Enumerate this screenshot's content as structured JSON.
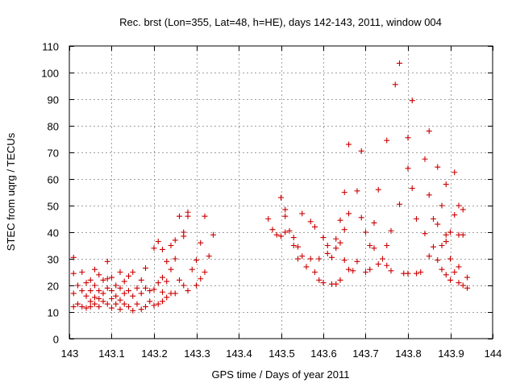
{
  "chart_data": {
    "type": "scatter",
    "title": "Rec. brst (Lon=355, Lat=48, h=HE), days 142-143, 2011, window 004",
    "xlabel": "GPS time / Days of year 2011",
    "ylabel": "STEC from uqrg / TECUs",
    "xlim": [
      143,
      144
    ],
    "ylim": [
      0,
      110
    ],
    "x_ticks": [
      143,
      143.1,
      143.2,
      143.3,
      143.4,
      143.5,
      143.6,
      143.7,
      143.8,
      143.9,
      144
    ],
    "x_tick_labels": [
      "143",
      "143.1",
      "143.2",
      "143.3",
      "143.4",
      "143.5",
      "143.6",
      "143.7",
      "143.8",
      "143.9",
      "144"
    ],
    "y_ticks": [
      0,
      10,
      20,
      30,
      40,
      50,
      60,
      70,
      80,
      90,
      100,
      110
    ],
    "y_tick_labels": [
      "0",
      "10",
      "20",
      "30",
      "40",
      "50",
      "60",
      "70",
      "80",
      "90",
      "100",
      "110"
    ],
    "grid": true,
    "marker": "+",
    "color": "#cc0000",
    "points": [
      [
        143.01,
        30.5
      ],
      [
        143.01,
        24.5
      ],
      [
        143.01,
        17
      ],
      [
        143.01,
        12
      ],
      [
        143.02,
        20
      ],
      [
        143.02,
        13
      ],
      [
        143.03,
        25
      ],
      [
        143.03,
        18
      ],
      [
        143.03,
        12
      ],
      [
        143.04,
        21
      ],
      [
        143.04,
        16
      ],
      [
        143.04,
        11.5
      ],
      [
        143.05,
        22
      ],
      [
        143.05,
        18
      ],
      [
        143.05,
        14
      ],
      [
        143.05,
        12
      ],
      [
        143.06,
        26
      ],
      [
        143.06,
        20
      ],
      [
        143.06,
        15.5
      ],
      [
        143.06,
        13
      ],
      [
        143.07,
        24
      ],
      [
        143.07,
        18
      ],
      [
        143.07,
        15
      ],
      [
        143.07,
        12
      ],
      [
        143.08,
        22
      ],
      [
        143.08,
        17
      ],
      [
        143.08,
        14
      ],
      [
        143.09,
        29
      ],
      [
        143.09,
        22.5
      ],
      [
        143.09,
        19
      ],
      [
        143.09,
        13
      ],
      [
        143.1,
        23
      ],
      [
        143.1,
        18
      ],
      [
        143.1,
        15
      ],
      [
        143.1,
        11.5
      ],
      [
        143.11,
        20
      ],
      [
        143.11,
        16
      ],
      [
        143.11,
        13
      ],
      [
        143.12,
        25
      ],
      [
        143.12,
        19
      ],
      [
        143.12,
        14.5
      ],
      [
        143.12,
        11
      ],
      [
        143.13,
        21.5
      ],
      [
        143.13,
        17
      ],
      [
        143.13,
        13
      ],
      [
        143.14,
        23.5
      ],
      [
        143.14,
        18
      ],
      [
        143.14,
        12
      ],
      [
        143.15,
        25
      ],
      [
        143.15,
        16
      ],
      [
        143.15,
        10.5
      ],
      [
        143.16,
        19
      ],
      [
        143.16,
        13
      ],
      [
        143.17,
        22
      ],
      [
        143.17,
        17
      ],
      [
        143.17,
        11
      ],
      [
        143.18,
        26.5
      ],
      [
        143.18,
        19
      ],
      [
        143.18,
        12
      ],
      [
        143.19,
        18
      ],
      [
        143.19,
        14
      ],
      [
        143.2,
        34
      ],
      [
        143.2,
        18.5
      ],
      [
        143.2,
        12.5
      ],
      [
        143.21,
        36.5
      ],
      [
        143.21,
        21
      ],
      [
        143.21,
        13
      ],
      [
        143.22,
        33.5
      ],
      [
        143.22,
        23
      ],
      [
        143.22,
        17.5
      ],
      [
        143.22,
        14
      ],
      [
        143.23,
        29
      ],
      [
        143.23,
        21.5
      ],
      [
        143.23,
        15.5
      ],
      [
        143.24,
        35
      ],
      [
        143.24,
        26
      ],
      [
        143.24,
        17
      ],
      [
        143.25,
        37
      ],
      [
        143.25,
        30
      ],
      [
        143.25,
        17
      ],
      [
        143.26,
        46
      ],
      [
        143.26,
        22
      ],
      [
        143.27,
        40
      ],
      [
        143.27,
        38.5
      ],
      [
        143.27,
        20
      ],
      [
        143.28,
        47.5
      ],
      [
        143.28,
        46
      ],
      [
        143.28,
        18
      ],
      [
        143.29,
        26
      ],
      [
        143.3,
        29.5
      ],
      [
        143.3,
        20
      ],
      [
        143.31,
        36
      ],
      [
        143.31,
        22.5
      ],
      [
        143.32,
        46
      ],
      [
        143.32,
        25
      ],
      [
        143.33,
        31
      ],
      [
        143.34,
        39
      ],
      [
        143.47,
        45
      ],
      [
        143.48,
        41
      ],
      [
        143.49,
        39
      ],
      [
        143.5,
        53
      ],
      [
        143.5,
        38.5
      ],
      [
        143.51,
        48.5
      ],
      [
        143.51,
        46
      ],
      [
        143.51,
        40
      ],
      [
        143.52,
        40.5
      ],
      [
        143.53,
        35
      ],
      [
        143.53,
        38
      ],
      [
        143.54,
        34.5
      ],
      [
        143.54,
        30
      ],
      [
        143.55,
        47
      ],
      [
        143.55,
        31
      ],
      [
        143.56,
        27
      ],
      [
        143.57,
        44
      ],
      [
        143.57,
        30
      ],
      [
        143.58,
        25
      ],
      [
        143.58,
        42
      ],
      [
        143.59,
        30
      ],
      [
        143.59,
        22
      ],
      [
        143.6,
        21
      ],
      [
        143.6,
        38
      ],
      [
        143.61,
        35
      ],
      [
        143.61,
        32
      ],
      [
        143.62,
        30.5
      ],
      [
        143.62,
        20.5
      ],
      [
        143.63,
        37.5
      ],
      [
        143.63,
        34
      ],
      [
        143.63,
        20.5
      ],
      [
        143.64,
        36
      ],
      [
        143.64,
        44.5
      ],
      [
        143.64,
        22
      ],
      [
        143.65,
        41
      ],
      [
        143.65,
        55
      ],
      [
        143.65,
        29.5
      ],
      [
        143.66,
        47
      ],
      [
        143.66,
        73
      ],
      [
        143.66,
        26
      ],
      [
        143.67,
        25.5
      ],
      [
        143.68,
        55.5
      ],
      [
        143.68,
        29
      ],
      [
        143.69,
        70.5
      ],
      [
        143.69,
        45.5
      ],
      [
        143.7,
        40
      ],
      [
        143.7,
        25
      ],
      [
        143.71,
        35
      ],
      [
        143.71,
        26
      ],
      [
        143.72,
        34
      ],
      [
        143.72,
        43.5
      ],
      [
        143.73,
        28
      ],
      [
        143.73,
        56
      ],
      [
        143.74,
        30
      ],
      [
        143.75,
        74.5
      ],
      [
        143.75,
        35
      ],
      [
        143.75,
        27.5
      ],
      [
        143.76,
        40.5
      ],
      [
        143.76,
        25.5
      ],
      [
        143.77,
        95.5
      ],
      [
        143.78,
        103.5
      ],
      [
        143.78,
        50.5
      ],
      [
        143.79,
        24.5
      ],
      [
        143.8,
        64
      ],
      [
        143.8,
        75.5
      ],
      [
        143.8,
        24.5
      ],
      [
        143.81,
        89.5
      ],
      [
        143.81,
        56.5
      ],
      [
        143.82,
        45
      ],
      [
        143.82,
        24.5
      ],
      [
        143.83,
        25
      ],
      [
        143.84,
        67.5
      ],
      [
        143.84,
        39.5
      ],
      [
        143.85,
        78
      ],
      [
        143.85,
        54
      ],
      [
        143.85,
        31
      ],
      [
        143.86,
        45
      ],
      [
        143.86,
        34.5
      ],
      [
        143.87,
        64.5
      ],
      [
        143.87,
        43
      ],
      [
        143.87,
        29.5
      ],
      [
        143.88,
        50
      ],
      [
        143.88,
        35
      ],
      [
        143.88,
        26
      ],
      [
        143.89,
        58
      ],
      [
        143.89,
        39
      ],
      [
        143.89,
        36.5
      ],
      [
        143.89,
        24
      ],
      [
        143.9,
        40
      ],
      [
        143.9,
        30
      ],
      [
        143.9,
        22
      ],
      [
        143.91,
        62.5
      ],
      [
        143.91,
        46.5
      ],
      [
        143.91,
        25
      ],
      [
        143.92,
        50
      ],
      [
        143.92,
        39
      ],
      [
        143.92,
        27
      ],
      [
        143.92,
        21
      ],
      [
        143.93,
        48.5
      ],
      [
        143.93,
        39
      ],
      [
        143.93,
        20
      ],
      [
        143.94,
        23
      ],
      [
        143.94,
        19
      ]
    ]
  }
}
